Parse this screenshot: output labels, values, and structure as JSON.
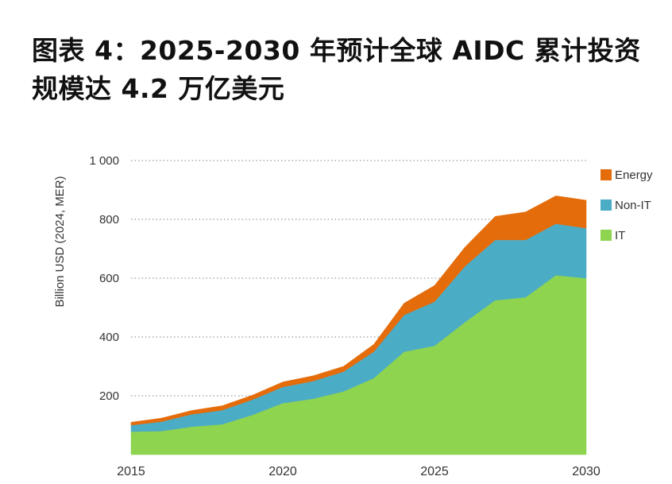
{
  "title": "图表 4：2025-2030 年预计全球 AIDC 累计投资规模达 4.2 万亿美元",
  "chart_data": {
    "type": "area",
    "stacked": true,
    "title": "图表 4：2025-2030 年预计全球 AIDC 累计投资规模达 4.2 万亿美元",
    "xlabel": "",
    "ylabel": "Billion USD (2024, MER)",
    "x": [
      2015,
      2016,
      2017,
      2018,
      2019,
      2020,
      2021,
      2022,
      2023,
      2024,
      2025,
      2026,
      2027,
      2028,
      2029,
      2030
    ],
    "xticks": [
      2015,
      2020,
      2025,
      2030
    ],
    "xtick_labels": [
      "2015",
      "2020",
      "2025",
      "2030"
    ],
    "yticks": [
      200,
      400,
      600,
      800,
      1000
    ],
    "ytick_labels": [
      "200",
      "400",
      "600",
      "800",
      "1 000"
    ],
    "xlim": [
      2015,
      2030
    ],
    "ylim": [
      0,
      1000
    ],
    "grid": "horizontal dotted",
    "legend_position": "right",
    "series": [
      {
        "name": "IT",
        "color": "#8ED44F",
        "values": [
          78,
          80,
          95,
          103,
          135,
          175,
          190,
          215,
          260,
          350,
          370,
          450,
          525,
          535,
          610,
          600
        ]
      },
      {
        "name": "Non-IT",
        "color": "#4BACC6",
        "values": [
          22,
          32,
          42,
          48,
          52,
          55,
          60,
          67,
          90,
          125,
          150,
          190,
          205,
          195,
          175,
          170
        ]
      },
      {
        "name": "Energy",
        "color": "#E46C0A",
        "values": [
          10,
          12,
          13,
          15,
          15,
          17,
          18,
          18,
          25,
          40,
          55,
          65,
          80,
          95,
          95,
          95
        ]
      }
    ],
    "legend": [
      "Energy",
      "Non-IT",
      "IT"
    ]
  }
}
